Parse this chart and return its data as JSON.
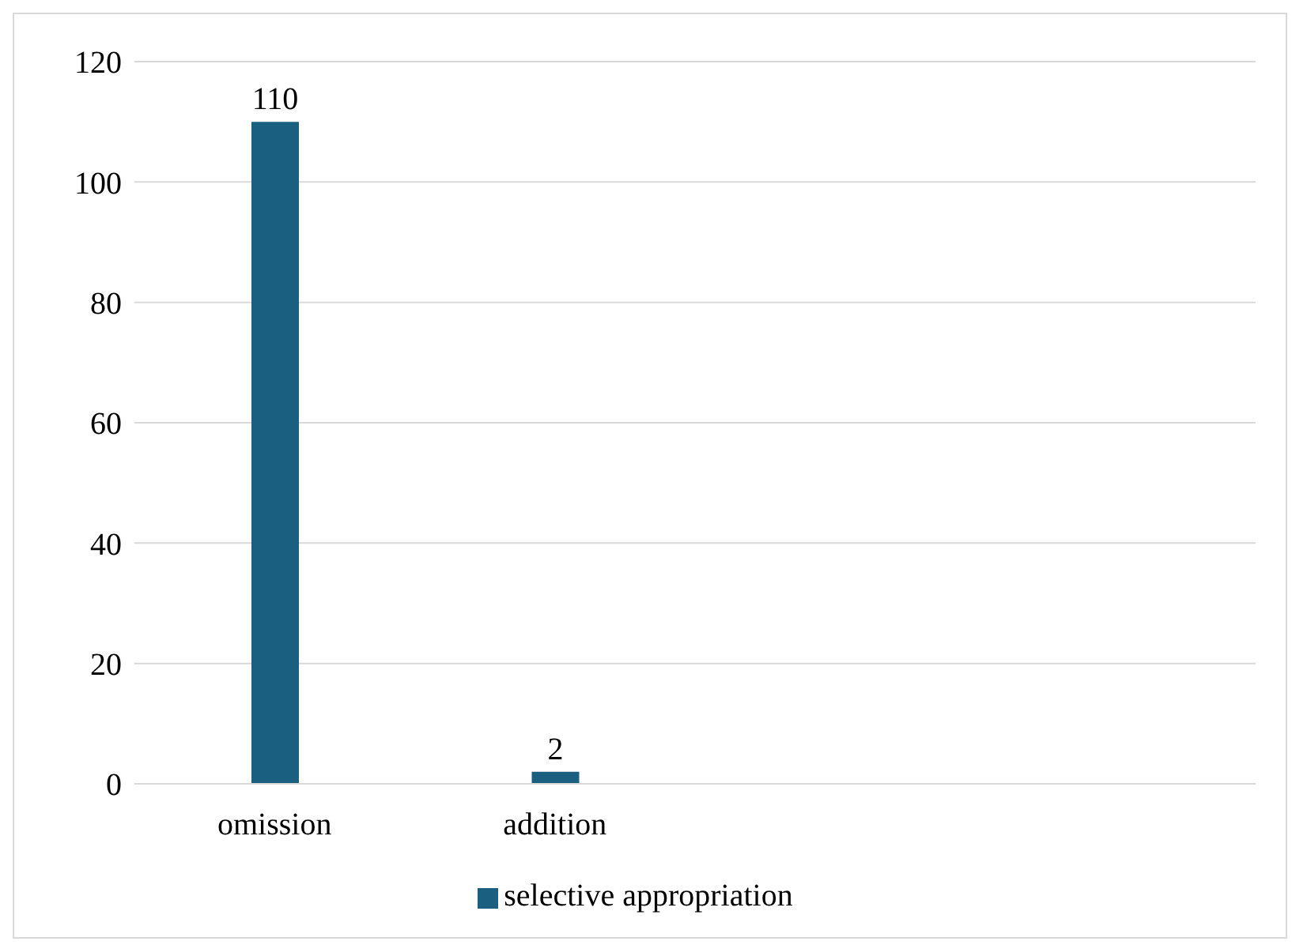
{
  "chart_data": {
    "type": "bar",
    "categories": [
      "omission",
      "addition",
      null,
      null
    ],
    "series": [
      {
        "name": "selective appropriation",
        "color": "#1a5e80",
        "values": [
          110,
          2,
          null,
          null
        ]
      }
    ],
    "ylim": [
      0,
      120
    ],
    "yticks": [
      0,
      20,
      40,
      60,
      80,
      100,
      120
    ],
    "grid": "y",
    "legend": "bottom",
    "data_labels": true
  }
}
